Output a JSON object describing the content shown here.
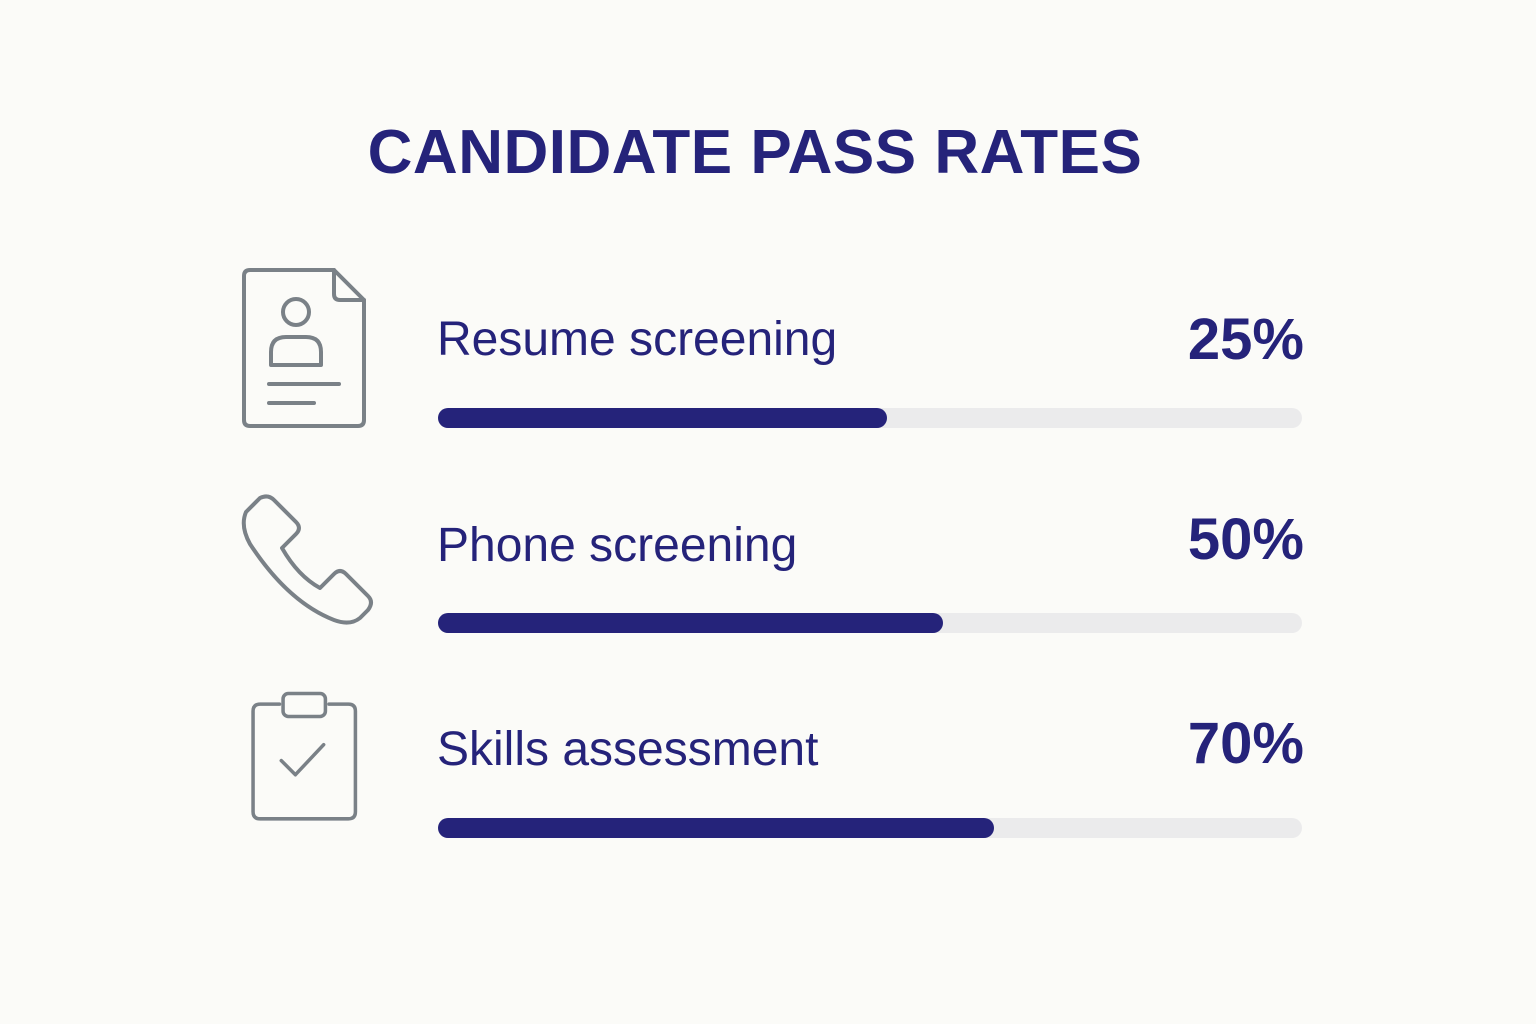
{
  "title": "CANDIDATE PASS RATES",
  "colors": {
    "accent": "#25237a",
    "track": "#ebebec",
    "icon": "#7a8187",
    "background": "#fbfbf8"
  },
  "chart_data": {
    "type": "bar",
    "orientation": "horizontal",
    "title": "CANDIDATE PASS RATES",
    "categories": [
      "Resume screening",
      "Phone screening",
      "Skills assessment"
    ],
    "value_labels": [
      "25%",
      "50%",
      "70%"
    ],
    "values": [
      25,
      50,
      70
    ],
    "bar_fill_fraction": [
      0.52,
      0.585,
      0.643
    ],
    "icons": [
      "resume-icon",
      "phone-icon",
      "clipboard-check-icon"
    ],
    "grid": false,
    "legend": "none"
  },
  "rows": [
    {
      "label": "Resume screening",
      "value_text": "25%",
      "icon": "resume-icon"
    },
    {
      "label": "Phone screening",
      "value_text": "50%",
      "icon": "phone-icon"
    },
    {
      "label": "Skills assessment",
      "value_text": "70%",
      "icon": "clipboard-check-icon"
    }
  ]
}
